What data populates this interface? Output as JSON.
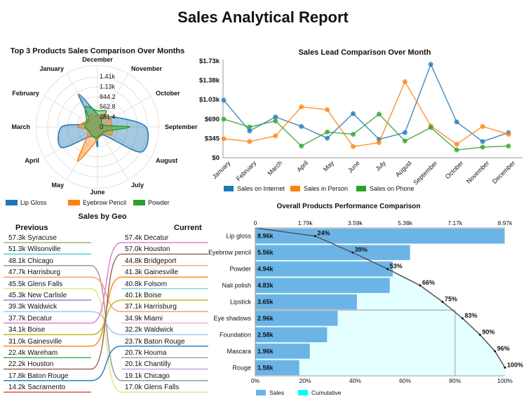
{
  "title": "Sales Analytical Report",
  "chart_data": [
    {
      "id": "radar",
      "type": "radar",
      "title": "Top 3 Products Sales Comparison Over Months",
      "categories": [
        "December",
        "January",
        "February",
        "March",
        "April",
        "May",
        "June",
        "July",
        "August",
        "September",
        "October",
        "November"
      ],
      "tick_labels": [
        "0",
        "281.4",
        "562.8",
        "844.2",
        "1.13k",
        "1.41k"
      ],
      "rlim": [
        0,
        1407
      ],
      "legend": "bottom",
      "series": [
        {
          "name": "Lip Gloss",
          "color": "#1f77b4",
          "values": [
            350,
            1050,
            300,
            1000,
            1150,
            300,
            550,
            250,
            1400,
            1350,
            550,
            300
          ]
        },
        {
          "name": "Eyebrow Pencil",
          "color": "#ff7f0e",
          "values": [
            300,
            400,
            350,
            550,
            300,
            1100,
            350,
            200,
            450,
            400,
            420,
            400
          ]
        },
        {
          "name": "Powder",
          "color": "#2ca02c",
          "values": [
            450,
            650,
            350,
            350,
            250,
            300,
            300,
            250,
            250,
            900,
            150,
            500
          ]
        }
      ]
    },
    {
      "id": "line",
      "type": "line",
      "title": "Sales Lead Comparison Over Month",
      "categories": [
        "January",
        "February",
        "March",
        "April",
        "May",
        "June",
        "July",
        "August",
        "September",
        "October",
        "November",
        "December"
      ],
      "y_ticks": [
        "$0",
        "$345",
        "$690",
        "$1.03k",
        "$1.38k",
        "$1.73k"
      ],
      "ylim": [
        0,
        1730
      ],
      "legend": "bottom",
      "series": [
        {
          "name": "Sales on Internet",
          "color": "#1f77b4",
          "values": [
            1030,
            480,
            730,
            560,
            350,
            790,
            330,
            450,
            1670,
            640,
            290,
            450
          ]
        },
        {
          "name": "Sales in Person",
          "color": "#ff7f0e",
          "values": [
            340,
            290,
            390,
            910,
            860,
            200,
            270,
            1360,
            570,
            240,
            560,
            420
          ]
        },
        {
          "name": "Sales on Phone",
          "color": "#2ca02c",
          "values": [
            690,
            550,
            660,
            210,
            460,
            420,
            780,
            300,
            540,
            140,
            190,
            210
          ]
        }
      ]
    },
    {
      "id": "pareto",
      "type": "bar",
      "title": "Overall Products Performance Comparison",
      "orientation": "horizontal",
      "categories": [
        "Lip gloss",
        "Eyebrow pencil",
        "Powder",
        "Nail polish",
        "Lipstick",
        "Eye shadows",
        "Foundation",
        "Mascara",
        "Rouge"
      ],
      "values": [
        8960,
        5560,
        4940,
        4830,
        3650,
        2960,
        2580,
        1960,
        1580
      ],
      "value_labels": [
        "8.96k",
        "5.56k",
        "4.94k",
        "4.83k",
        "3.65k",
        "2.96k",
        "2.58k",
        "1.96k",
        "1.58k"
      ],
      "cumulative_percent": [
        24,
        39,
        53,
        66,
        75,
        83,
        90,
        96,
        100
      ],
      "cumulative_labels": [
        "24%",
        "39%",
        "53%",
        "66%",
        "75%",
        "83%",
        "90%",
        "96%",
        "100%"
      ],
      "top_ticks": [
        "0",
        "1.79k",
        "3.59k",
        "5.38k",
        "7.17k",
        "8.97k"
      ],
      "xlim": [
        0,
        8970
      ],
      "bottom_ticks": [
        "0%",
        "20%",
        "40%",
        "60%",
        "80%",
        "100%"
      ],
      "reference_percent": 80,
      "legend": "bottom",
      "legend_items": [
        {
          "name": "Sales",
          "color": "#6cb4e6"
        },
        {
          "name": "Cumulative",
          "color": "#00ffff"
        }
      ]
    }
  ],
  "sales_by_geo": {
    "title": "Sales by Geo",
    "previous_label": "Previous",
    "current_label": "Current",
    "previous": [
      {
        "value": "57.3k",
        "city": "Syracuse",
        "color": "#9bb28a"
      },
      {
        "value": "51.3k",
        "city": "Wilsonville",
        "color": "#4dd0e1"
      },
      {
        "value": "48.1k",
        "city": "Chicago",
        "color": "#999999"
      },
      {
        "value": "47.7k",
        "city": "Harrisburg",
        "color": "#f4a070"
      },
      {
        "value": "45.5k",
        "city": "Glens Falls",
        "color": "#e6e68a"
      },
      {
        "value": "45.3k",
        "city": "New Carlisle",
        "color": "#9b7fd1"
      },
      {
        "value": "39.3k",
        "city": "Waldwick",
        "color": "#9ec9ea"
      },
      {
        "value": "37.7k",
        "city": "Decatur",
        "color": "#e87fd1"
      },
      {
        "value": "34.1k",
        "city": "Boise",
        "color": "#b5c02a"
      },
      {
        "value": "31.0k",
        "city": "Gainesville",
        "color": "#ff8c1a"
      },
      {
        "value": "22.4k",
        "city": "Wareham",
        "color": "#4caf50"
      },
      {
        "value": "22.2k",
        "city": "Houston",
        "color": "#9c6b5a"
      },
      {
        "value": "17.8k",
        "city": "Baton Rouge",
        "color": "#2a7fc1"
      },
      {
        "value": "14.2k",
        "city": "Sacramento",
        "color": "#e05555"
      }
    ],
    "current": [
      {
        "value": "57.4k",
        "city": "Decatur",
        "color": "#e87fd1"
      },
      {
        "value": "57.0k",
        "city": "Houston",
        "color": "#9c6b5a"
      },
      {
        "value": "44.8k",
        "city": "Bridgeport",
        "color": "#f5b27a"
      },
      {
        "value": "41.3k",
        "city": "Gainesville",
        "color": "#ff8c1a"
      },
      {
        "value": "40.8k",
        "city": "Folsom",
        "color": "#7fd6d6"
      },
      {
        "value": "40.1k",
        "city": "Boise",
        "color": "#b5c02a"
      },
      {
        "value": "37.1k",
        "city": "Harrisburg",
        "color": "#f4a070"
      },
      {
        "value": "34.9k",
        "city": "Miami",
        "color": "#f2b6c6"
      },
      {
        "value": "32.2k",
        "city": "Waldwick",
        "color": "#9ec9ea"
      },
      {
        "value": "23.7k",
        "city": "Baton Rouge",
        "color": "#2a7fc1"
      },
      {
        "value": "20.7k",
        "city": "Houma",
        "color": "#b69aa8"
      },
      {
        "value": "20.1k",
        "city": "Chantilly",
        "color": "#c8a8d8"
      },
      {
        "value": "19.1k",
        "city": "Chicago",
        "color": "#999999"
      },
      {
        "value": "17.0k",
        "city": "Glens Falls",
        "color": "#e6e68a"
      }
    ]
  }
}
